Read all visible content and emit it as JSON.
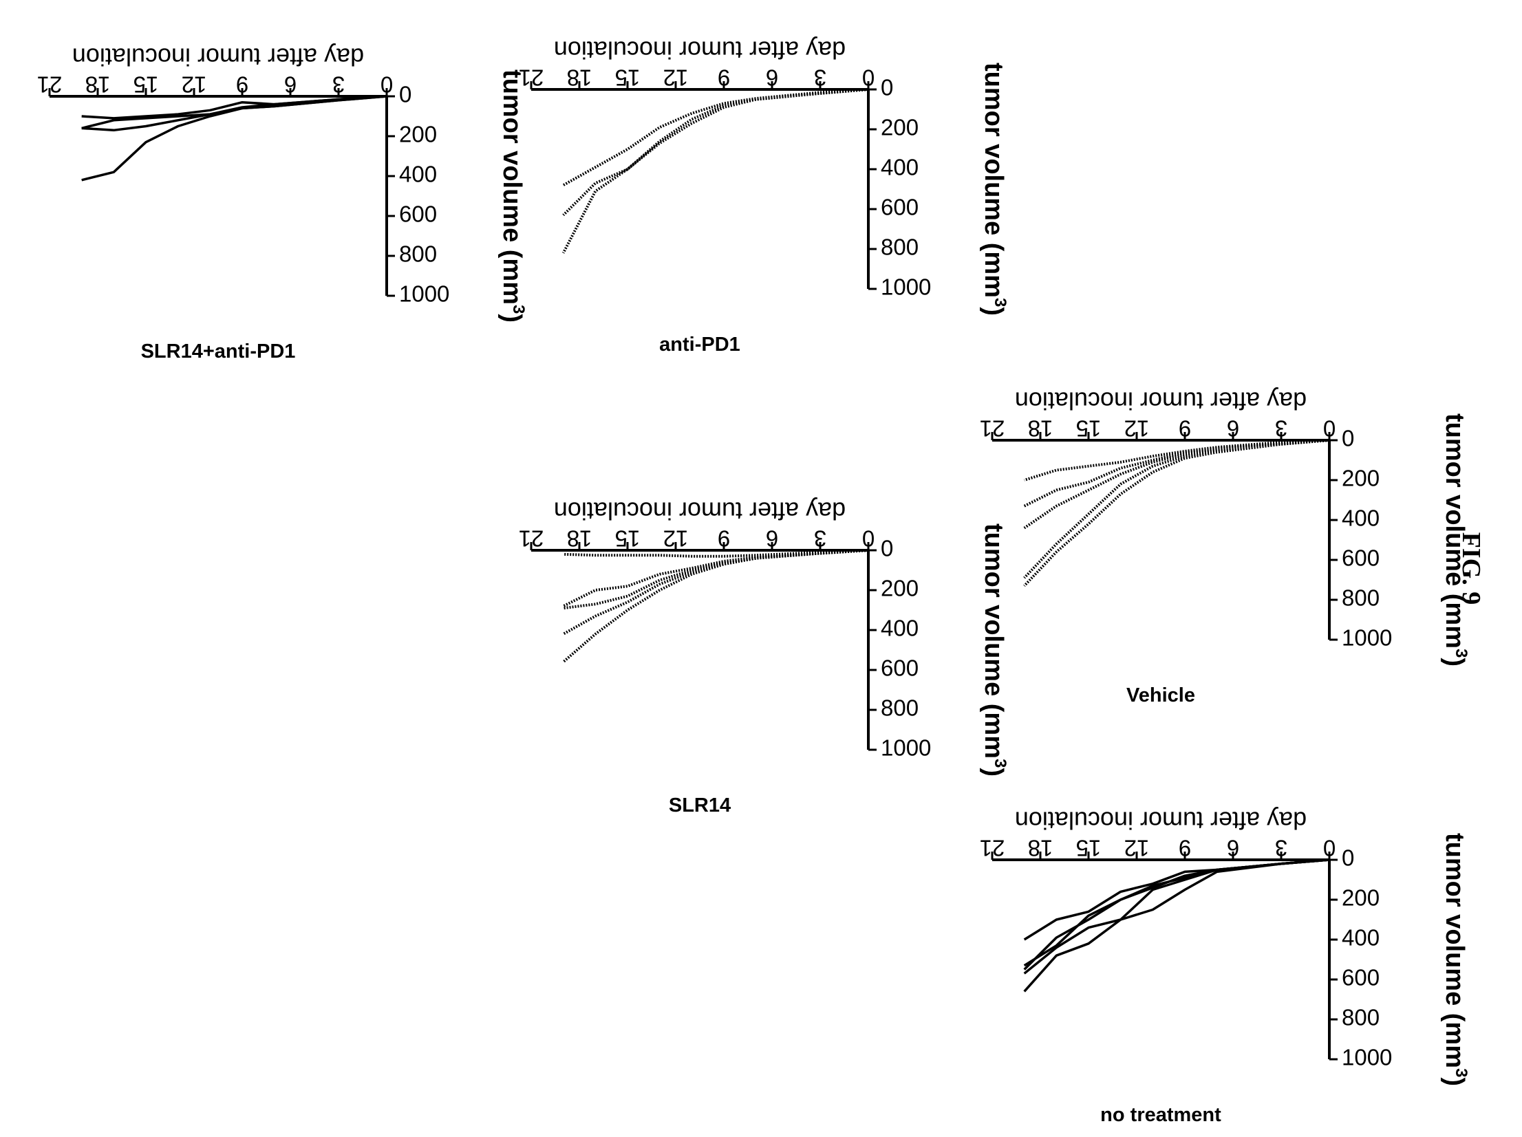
{
  "figure_label": "FIG. 9",
  "chart_data": [
    {
      "type": "line",
      "title": "Vehicle",
      "xlabel": "day after tumor inoculation",
      "ylabel": "tumor volume (mm3)",
      "xlim": [
        0,
        21
      ],
      "ylim": [
        0,
        1000
      ],
      "xticks": [
        0,
        3,
        6,
        9,
        12,
        15,
        18,
        21
      ],
      "yticks": [
        0,
        200,
        400,
        600,
        800,
        1000
      ],
      "line_style": "dotted",
      "grid": false,
      "series": [
        {
          "x": [
            0,
            3,
            7,
            9,
            11,
            13,
            15,
            17,
            19
          ],
          "y": [
            0,
            20,
            60,
            90,
            160,
            270,
            420,
            560,
            730
          ]
        },
        {
          "x": [
            0,
            3,
            7,
            9,
            11,
            13,
            15,
            17,
            19
          ],
          "y": [
            0,
            20,
            50,
            80,
            130,
            220,
            370,
            520,
            690
          ]
        },
        {
          "x": [
            0,
            3,
            7,
            9,
            11,
            13,
            15,
            17,
            19
          ],
          "y": [
            0,
            15,
            45,
            70,
            110,
            170,
            250,
            330,
            440
          ]
        },
        {
          "x": [
            0,
            3,
            7,
            9,
            11,
            13,
            15,
            17,
            19
          ],
          "y": [
            0,
            15,
            40,
            60,
            100,
            140,
            210,
            250,
            330
          ]
        },
        {
          "x": [
            0,
            3,
            7,
            9,
            11,
            13,
            15,
            17,
            19
          ],
          "y": [
            0,
            10,
            35,
            55,
            80,
            110,
            130,
            150,
            200
          ]
        }
      ]
    },
    {
      "type": "line",
      "title": "no treatment",
      "xlabel": "day after tumor inoculation",
      "ylabel": "tumor volume (mm3)",
      "xlim": [
        0,
        21
      ],
      "ylim": [
        0,
        1000
      ],
      "xticks": [
        0,
        3,
        6,
        9,
        12,
        15,
        18,
        21
      ],
      "yticks": [
        0,
        200,
        400,
        600,
        800,
        1000
      ],
      "line_style": "solid",
      "grid": false,
      "series": [
        {
          "x": [
            0,
            3,
            7,
            9,
            11,
            13,
            15,
            17,
            19
          ],
          "y": [
            0,
            20,
            60,
            150,
            250,
            300,
            420,
            480,
            660
          ]
        },
        {
          "x": [
            0,
            3,
            7,
            9,
            11,
            13,
            15,
            17,
            19
          ],
          "y": [
            0,
            20,
            50,
            100,
            150,
            300,
            340,
            440,
            570
          ]
        },
        {
          "x": [
            0,
            3,
            7,
            9,
            11,
            13,
            15,
            17,
            19
          ],
          "y": [
            0,
            20,
            50,
            90,
            130,
            200,
            300,
            390,
            550
          ]
        },
        {
          "x": [
            0,
            3,
            7,
            9,
            11,
            13,
            15,
            17,
            19
          ],
          "y": [
            0,
            20,
            50,
            80,
            140,
            200,
            280,
            430,
            530
          ]
        },
        {
          "x": [
            0,
            3,
            7,
            9,
            11,
            13,
            15,
            17,
            19
          ],
          "y": [
            0,
            20,
            50,
            60,
            120,
            160,
            260,
            300,
            400
          ]
        }
      ]
    },
    {
      "type": "line",
      "title": "anti-PD1",
      "xlabel": "day after tumor inoculation",
      "ylabel": "tumor volume (mm3)",
      "xlim": [
        0,
        21
      ],
      "ylim": [
        0,
        1000
      ],
      "xticks": [
        0,
        3,
        6,
        9,
        12,
        15,
        18,
        21
      ],
      "yticks": [
        0,
        200,
        400,
        600,
        800,
        1000
      ],
      "line_style": "dotted",
      "grid": false,
      "series": [
        {
          "x": [
            0,
            3,
            7,
            9,
            11,
            13,
            15,
            17,
            19
          ],
          "y": [
            0,
            20,
            50,
            90,
            170,
            270,
            400,
            510,
            820
          ]
        },
        {
          "x": [
            0,
            3,
            7,
            9,
            11,
            13,
            15,
            17,
            19
          ],
          "y": [
            0,
            20,
            50,
            80,
            150,
            260,
            400,
            470,
            630
          ]
        },
        {
          "x": [
            0,
            3,
            7,
            9,
            11,
            13,
            15,
            17,
            19
          ],
          "y": [
            0,
            15,
            45,
            70,
            120,
            190,
            300,
            390,
            480
          ]
        }
      ]
    },
    {
      "type": "line",
      "title": "SLR14",
      "xlabel": "day after tumor inoculation",
      "ylabel": "tumor volume (mm3)",
      "xlim": [
        0,
        21
      ],
      "ylim": [
        0,
        1000
      ],
      "xticks": [
        0,
        3,
        6,
        9,
        12,
        15,
        18,
        21
      ],
      "yticks": [
        0,
        200,
        400,
        600,
        800,
        1000
      ],
      "line_style": "dotted",
      "grid": false,
      "series": [
        {
          "x": [
            0,
            3,
            7,
            9,
            11,
            13,
            15,
            17,
            19
          ],
          "y": [
            0,
            15,
            40,
            70,
            120,
            200,
            300,
            420,
            560
          ]
        },
        {
          "x": [
            0,
            3,
            7,
            9,
            11,
            13,
            15,
            17,
            19
          ],
          "y": [
            0,
            15,
            40,
            65,
            110,
            170,
            260,
            330,
            420
          ]
        },
        {
          "x": [
            0,
            3,
            7,
            9,
            11,
            13,
            15,
            17,
            19
          ],
          "y": [
            0,
            15,
            40,
            60,
            100,
            150,
            230,
            270,
            290
          ]
        },
        {
          "x": [
            0,
            3,
            7,
            9,
            11,
            13,
            15,
            17,
            19
          ],
          "y": [
            0,
            15,
            35,
            55,
            90,
            120,
            180,
            200,
            280
          ]
        },
        {
          "x": [
            0,
            3,
            7,
            9,
            11,
            13,
            15,
            17,
            19
          ],
          "y": [
            0,
            10,
            25,
            30,
            30,
            25,
            25,
            25,
            20
          ]
        }
      ]
    },
    {
      "type": "line",
      "title": "SLR14+anti-PD1",
      "xlabel": "day after tumor inoculation",
      "ylabel": "tumor volume (mm3)",
      "xlim": [
        0,
        21
      ],
      "ylim": [
        0,
        1000
      ],
      "xticks": [
        0,
        3,
        6,
        9,
        12,
        15,
        18,
        21
      ],
      "yticks": [
        0,
        200,
        400,
        600,
        800,
        1000
      ],
      "line_style": "solid",
      "grid": false,
      "series": [
        {
          "x": [
            0,
            3,
            7,
            9,
            11,
            13,
            15,
            17,
            19
          ],
          "y": [
            0,
            20,
            50,
            60,
            100,
            150,
            230,
            380,
            420
          ]
        },
        {
          "x": [
            0,
            3,
            7,
            9,
            11,
            13,
            15,
            17,
            19
          ],
          "y": [
            0,
            20,
            50,
            60,
            90,
            120,
            150,
            170,
            160
          ]
        },
        {
          "x": [
            0,
            3,
            7,
            9,
            11,
            13,
            15,
            17,
            19
          ],
          "y": [
            0,
            15,
            40,
            55,
            90,
            100,
            110,
            120,
            160
          ]
        },
        {
          "x": [
            0,
            3,
            7,
            9,
            11,
            13,
            15,
            17,
            19
          ],
          "y": [
            0,
            15,
            40,
            30,
            70,
            90,
            100,
            110,
            100
          ]
        }
      ]
    }
  ]
}
